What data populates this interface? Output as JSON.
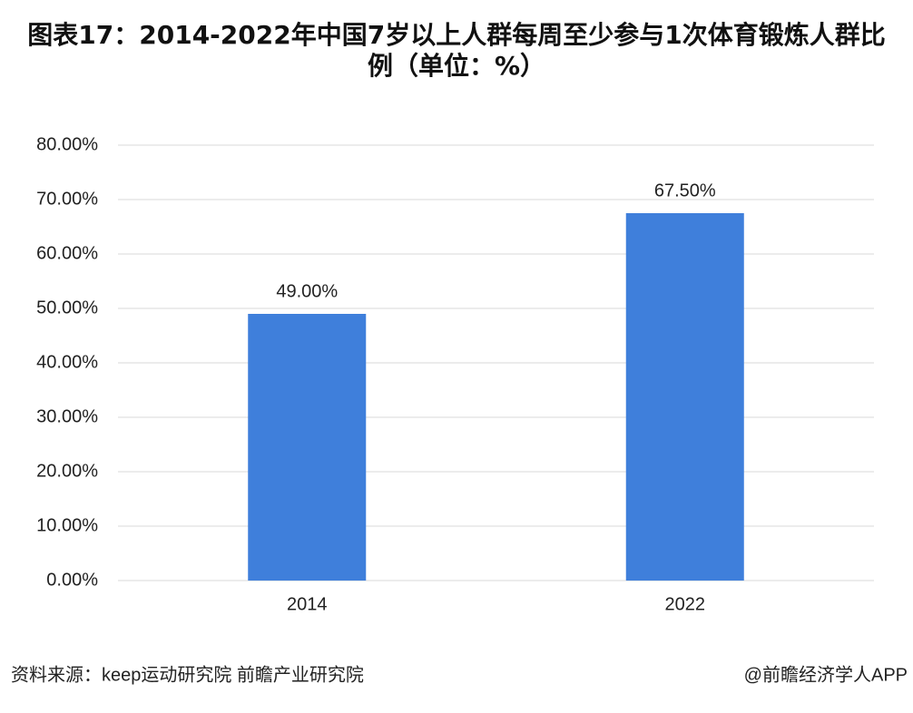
{
  "chart_data": {
    "type": "bar",
    "title": "图表17：2014-2022年中国7岁以上人群每周至少参与1次体育锻炼人群比例（单位：%）",
    "categories": [
      "2014",
      "2022"
    ],
    "values": [
      49,
      67.5
    ],
    "value_labels": [
      "49.00%",
      "67.50%"
    ],
    "color": "#3f7fdb",
    "ylim": [
      0,
      80
    ],
    "yticks": [
      {
        "value": 0,
        "label": "0.00%"
      },
      {
        "value": 10,
        "label": "10.00%"
      },
      {
        "value": 20,
        "label": "20.00%"
      },
      {
        "value": 30,
        "label": "30.00%"
      },
      {
        "value": 40,
        "label": "40.00%"
      },
      {
        "value": 50,
        "label": "50.00%"
      },
      {
        "value": 60,
        "label": "60.00%"
      },
      {
        "value": 70,
        "label": "70.00%"
      },
      {
        "value": 80,
        "label": "80.00%"
      }
    ],
    "grid": true,
    "source": "资料来源：keep运动研究院 前瞻产业研究院",
    "credit": "@前瞻经济学人APP"
  }
}
